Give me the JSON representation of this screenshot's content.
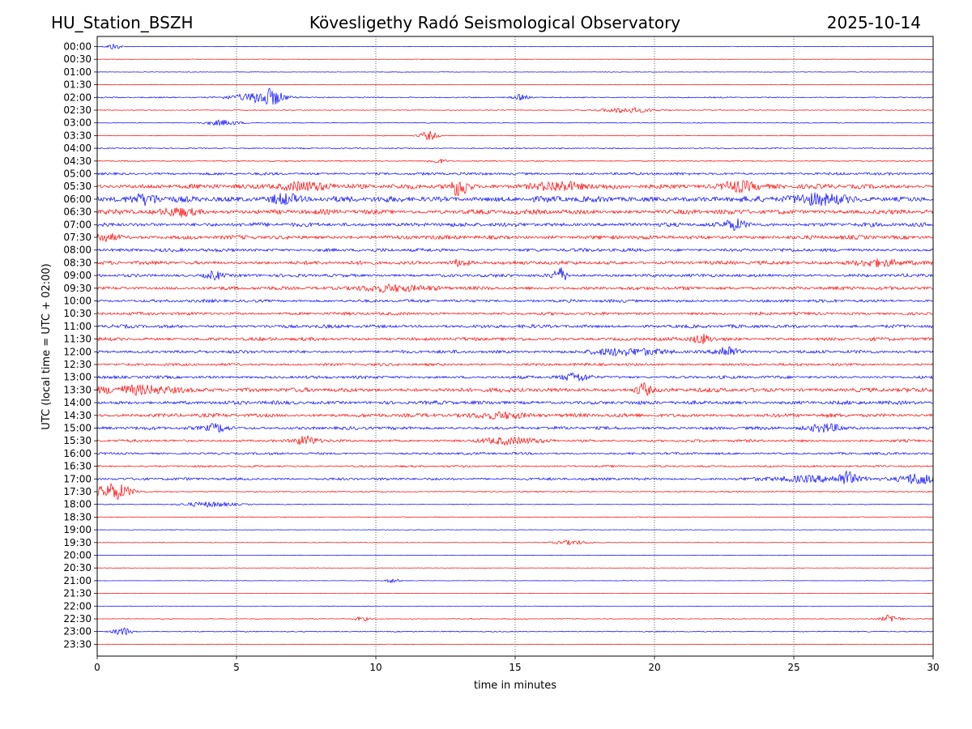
{
  "header": {
    "station": "HU_Station_BSZH",
    "observatory": "Kövesligethy Radó Seismological Observatory",
    "date": "2025-10-14"
  },
  "colors": {
    "even_trace": "#0000ff",
    "odd_trace": "#ff0000",
    "axes": "#000000",
    "grid": "#000000"
  },
  "chart_data": {
    "type": "line",
    "title": "Kövesligethy Radó Seismological Observatory",
    "xlabel": "time in minutes",
    "ylabel": "UTC (local time = UTC + 02:00)",
    "xlim": [
      0,
      30
    ],
    "xticks": [
      0,
      5,
      10,
      15,
      20,
      25,
      30
    ],
    "xtick_labels": [
      "0",
      "5",
      "10",
      "15",
      "20",
      "25",
      "30"
    ],
    "grid": "vertical dotted at major ticks",
    "rows": [
      "00:00",
      "00:30",
      "01:00",
      "01:30",
      "02:00",
      "02:30",
      "03:00",
      "03:30",
      "04:00",
      "04:30",
      "05:00",
      "05:30",
      "06:00",
      "06:30",
      "07:00",
      "07:30",
      "08:00",
      "08:30",
      "09:00",
      "09:30",
      "10:00",
      "10:30",
      "11:00",
      "11:30",
      "12:00",
      "12:30",
      "13:00",
      "13:30",
      "14:00",
      "14:30",
      "15:00",
      "15:30",
      "16:00",
      "16:30",
      "17:00",
      "17:30",
      "18:00",
      "18:30",
      "19:00",
      "19:30",
      "20:00",
      "20:30",
      "21:00",
      "21:30",
      "22:00",
      "22:30",
      "23:00",
      "23:30"
    ],
    "series_style": "alternating blue / red helicorder traces, one per 30-minute row",
    "noise_level": [
      0.05,
      0.04,
      0.05,
      0.04,
      0.12,
      0.08,
      0.08,
      0.08,
      0.12,
      0.12,
      0.25,
      0.45,
      0.55,
      0.45,
      0.38,
      0.38,
      0.32,
      0.35,
      0.3,
      0.32,
      0.28,
      0.28,
      0.32,
      0.32,
      0.3,
      0.25,
      0.28,
      0.4,
      0.35,
      0.35,
      0.3,
      0.25,
      0.22,
      0.18,
      0.25,
      0.12,
      0.08,
      0.08,
      0.05,
      0.06,
      0.04,
      0.04,
      0.04,
      0.03,
      0.03,
      0.08,
      0.1,
      0.04
    ],
    "events": [
      {
        "row": 0,
        "minute": 0.6,
        "amp": 0.6,
        "dur": 0.4
      },
      {
        "row": 4,
        "minute": 6.2,
        "amp": 1.3,
        "dur": 0.8
      },
      {
        "row": 4,
        "minute": 5.5,
        "amp": 0.6,
        "dur": 1.5
      },
      {
        "row": 4,
        "minute": 15.2,
        "amp": 0.5,
        "dur": 0.4
      },
      {
        "row": 5,
        "minute": 19.0,
        "amp": 0.5,
        "dur": 1.5
      },
      {
        "row": 6,
        "minute": 4.5,
        "amp": 0.5,
        "dur": 1.0
      },
      {
        "row": 7,
        "minute": 11.9,
        "amp": 0.8,
        "dur": 0.5
      },
      {
        "row": 9,
        "minute": 12.2,
        "amp": 0.4,
        "dur": 0.5
      },
      {
        "row": 11,
        "minute": 13.0,
        "amp": 1.7,
        "dur": 0.5
      },
      {
        "row": 11,
        "minute": 7.5,
        "amp": 0.8,
        "dur": 1.5
      },
      {
        "row": 11,
        "minute": 16.5,
        "amp": 0.8,
        "dur": 1.5
      },
      {
        "row": 11,
        "minute": 23.0,
        "amp": 1.0,
        "dur": 1.0
      },
      {
        "row": 12,
        "minute": 1.8,
        "amp": 0.8,
        "dur": 0.8
      },
      {
        "row": 12,
        "minute": 6.7,
        "amp": 0.9,
        "dur": 0.8
      },
      {
        "row": 12,
        "minute": 26.0,
        "amp": 0.9,
        "dur": 1.5
      },
      {
        "row": 13,
        "minute": 3.0,
        "amp": 0.7,
        "dur": 1.0
      },
      {
        "row": 14,
        "minute": 22.9,
        "amp": 1.0,
        "dur": 0.6
      },
      {
        "row": 15,
        "minute": 0.3,
        "amp": 0.7,
        "dur": 0.8
      },
      {
        "row": 17,
        "minute": 13.0,
        "amp": 0.6,
        "dur": 0.5
      },
      {
        "row": 17,
        "minute": 28.0,
        "amp": 0.6,
        "dur": 1.5
      },
      {
        "row": 18,
        "minute": 4.2,
        "amp": 0.8,
        "dur": 0.5
      },
      {
        "row": 18,
        "minute": 16.6,
        "amp": 1.4,
        "dur": 0.4
      },
      {
        "row": 19,
        "minute": 10.5,
        "amp": 0.6,
        "dur": 2.0
      },
      {
        "row": 23,
        "minute": 21.7,
        "amp": 0.9,
        "dur": 0.5
      },
      {
        "row": 24,
        "minute": 22.6,
        "amp": 1.2,
        "dur": 0.6
      },
      {
        "row": 24,
        "minute": 19.0,
        "amp": 0.6,
        "dur": 2.0
      },
      {
        "row": 26,
        "minute": 17.2,
        "amp": 0.7,
        "dur": 0.8
      },
      {
        "row": 27,
        "minute": 19.6,
        "amp": 1.2,
        "dur": 0.4
      },
      {
        "row": 27,
        "minute": 1.5,
        "amp": 0.7,
        "dur": 2.5
      },
      {
        "row": 29,
        "minute": 14.5,
        "amp": 0.6,
        "dur": 1.5
      },
      {
        "row": 30,
        "minute": 4.3,
        "amp": 0.8,
        "dur": 0.6
      },
      {
        "row": 30,
        "minute": 26.2,
        "amp": 0.7,
        "dur": 1.0
      },
      {
        "row": 31,
        "minute": 7.5,
        "amp": 0.9,
        "dur": 0.6
      },
      {
        "row": 31,
        "minute": 14.8,
        "amp": 0.6,
        "dur": 1.5
      },
      {
        "row": 34,
        "minute": 26.9,
        "amp": 1.1,
        "dur": 0.4
      },
      {
        "row": 34,
        "minute": 29.5,
        "amp": 1.1,
        "dur": 1.0
      },
      {
        "row": 34,
        "minute": 26.0,
        "amp": 0.5,
        "dur": 3.0
      },
      {
        "row": 35,
        "minute": 0.6,
        "amp": 1.6,
        "dur": 1.0
      },
      {
        "row": 36,
        "minute": 4.0,
        "amp": 0.5,
        "dur": 1.5
      },
      {
        "row": 39,
        "minute": 17.0,
        "amp": 0.4,
        "dur": 1.0
      },
      {
        "row": 42,
        "minute": 10.6,
        "amp": 0.4,
        "dur": 0.4
      },
      {
        "row": 45,
        "minute": 28.5,
        "amp": 0.8,
        "dur": 0.5
      },
      {
        "row": 45,
        "minute": 9.5,
        "amp": 0.4,
        "dur": 0.4
      },
      {
        "row": 46,
        "minute": 0.9,
        "amp": 0.8,
        "dur": 0.5
      }
    ]
  }
}
